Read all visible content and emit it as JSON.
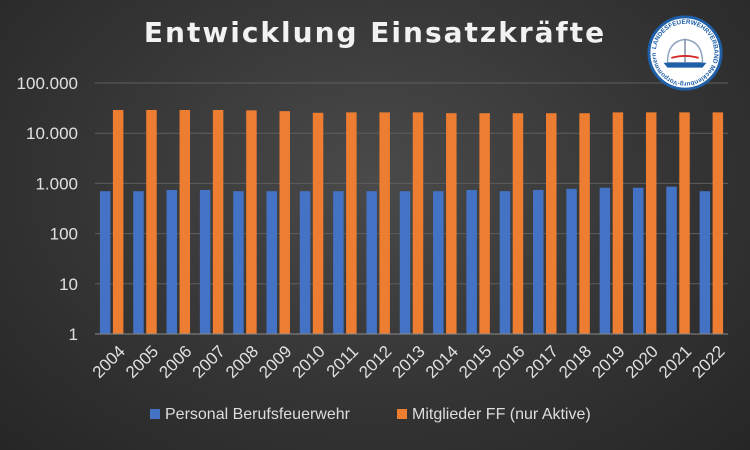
{
  "chart_data": {
    "type": "bar",
    "title": "Entwicklung Einsatzkräfte",
    "xlabel": "",
    "ylabel": "",
    "yscale": "log",
    "ylim": [
      1,
      100000
    ],
    "yticks": [
      1,
      10,
      100,
      1000,
      10000,
      100000
    ],
    "ytick_labels": [
      "1",
      "10",
      "100",
      "1.000",
      "10.000",
      "100.000"
    ],
    "grid": true,
    "legend_position": "bottom",
    "categories": [
      "2004",
      "2005",
      "2006",
      "2007",
      "2008",
      "2009",
      "2010",
      "2011",
      "2012",
      "2013",
      "2014",
      "2015",
      "2016",
      "2017",
      "2018",
      "2019",
      "2020",
      "2021",
      "2022"
    ],
    "series": [
      {
        "name": "Personal Berufsfeuerwehr",
        "color": "#4472c4",
        "values": [
          700,
          700,
          740,
          740,
          700,
          700,
          700,
          700,
          700,
          700,
          700,
          740,
          700,
          740,
          780,
          820,
          820,
          860,
          700
        ]
      },
      {
        "name": "Mitglieder FF (nur Aktive)",
        "color": "#ed7d31",
        "values": [
          29000,
          29000,
          29000,
          29000,
          28500,
          27500,
          25500,
          26000,
          26000,
          26000,
          25000,
          25000,
          25000,
          25000,
          25000,
          26000,
          26000,
          26000,
          26000
        ]
      }
    ]
  },
  "logo": {
    "icon": "fire-helmet-icon",
    "text": "LANDESFEUERWEHRVERBAND Mecklenburg-Vorpommern e.V.",
    "colors": {
      "ring": "#1f5fa8",
      "helmet": "#ffffff",
      "accent": "#d62828"
    }
  }
}
